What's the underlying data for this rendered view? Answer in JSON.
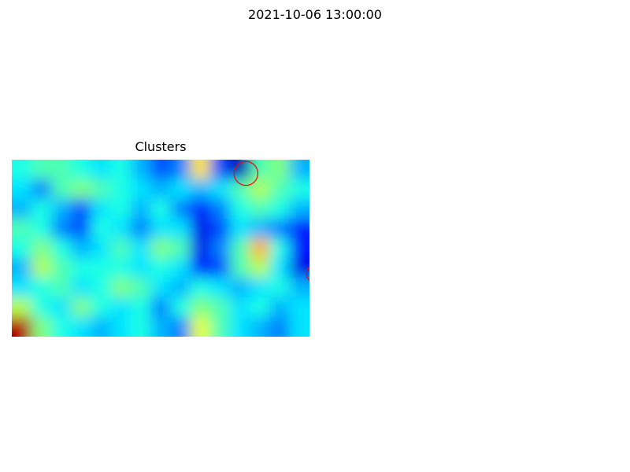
{
  "figure": {
    "title": "2021-10-06 13:00:00"
  },
  "chart_data": {
    "type": "heatmap",
    "title": "Clusters",
    "colormap": "jet",
    "value_range": [
      0,
      1
    ],
    "axes_visible": false,
    "grid": false,
    "legend": "none",
    "marker_color": "#ff0000",
    "rows": 9,
    "cols": 15,
    "values": [
      [
        0.4,
        0.45,
        0.45,
        0.4,
        0.35,
        0.4,
        0.3,
        0.2,
        0.25,
        0.65,
        0.2,
        0.05,
        0.45,
        0.5,
        0.3
      ],
      [
        0.35,
        0.25,
        0.45,
        0.5,
        0.45,
        0.4,
        0.35,
        0.3,
        0.35,
        0.3,
        0.35,
        0.45,
        0.55,
        0.45,
        0.4
      ],
      [
        0.3,
        0.4,
        0.3,
        0.2,
        0.35,
        0.4,
        0.3,
        0.4,
        0.25,
        0.15,
        0.25,
        0.4,
        0.45,
        0.4,
        0.3
      ],
      [
        0.45,
        0.4,
        0.25,
        0.2,
        0.4,
        0.35,
        0.25,
        0.35,
        0.35,
        0.1,
        0.2,
        0.35,
        0.3,
        0.25,
        0.15
      ],
      [
        0.4,
        0.5,
        0.4,
        0.3,
        0.35,
        0.45,
        0.35,
        0.5,
        0.45,
        0.1,
        0.25,
        0.45,
        0.7,
        0.4,
        0.15
      ],
      [
        0.3,
        0.55,
        0.45,
        0.4,
        0.4,
        0.4,
        0.35,
        0.4,
        0.35,
        0.15,
        0.2,
        0.45,
        0.55,
        0.35,
        0.1
      ],
      [
        0.35,
        0.4,
        0.45,
        0.35,
        0.4,
        0.5,
        0.45,
        0.35,
        0.3,
        0.4,
        0.35,
        0.3,
        0.35,
        0.4,
        0.3
      ],
      [
        0.55,
        0.4,
        0.35,
        0.5,
        0.4,
        0.35,
        0.4,
        0.25,
        0.4,
        0.5,
        0.45,
        0.35,
        0.4,
        0.3,
        0.35
      ],
      [
        0.95,
        0.5,
        0.4,
        0.35,
        0.3,
        0.35,
        0.4,
        0.3,
        0.25,
        0.6,
        0.45,
        0.35,
        0.3,
        0.25,
        0.35
      ]
    ],
    "circles": [
      {
        "col": 11.3,
        "row": 0.2,
        "r": 0.6
      },
      {
        "col": 14.8,
        "row": 5.3,
        "r": 0.45
      }
    ]
  }
}
